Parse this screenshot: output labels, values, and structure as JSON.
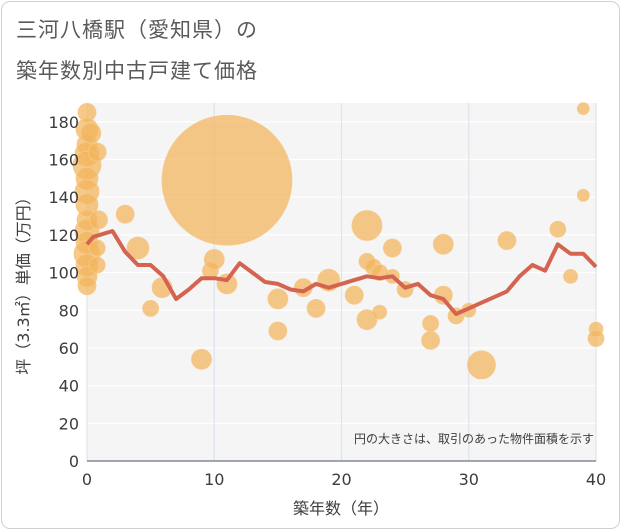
{
  "title_line1": "三河八橋駅（愛知県）の",
  "title_line2": "築年数別中古戸建て価格",
  "chart_data": {
    "type": "scatter",
    "title": "三河八橋駅（愛知県）の築年数別中古戸建て価格",
    "xlabel": "築年数（年）",
    "ylabel": "坪（3.3㎡）単価（万円）",
    "xlim": [
      0,
      40
    ],
    "ylim": [
      0,
      190
    ],
    "xticks": [
      0,
      10,
      20,
      30,
      40
    ],
    "yticks": [
      0,
      20,
      40,
      60,
      80,
      100,
      120,
      140,
      160,
      180
    ],
    "grid": true,
    "note": "円の大きさは、取引のあった物件面積を示す",
    "colors": {
      "bubble": "#f2b45c",
      "line": "#d4644f"
    },
    "bubbles": [
      {
        "x": 0,
        "y": 185,
        "size": 9
      },
      {
        "x": 0,
        "y": 176,
        "size": 11
      },
      {
        "x": 0,
        "y": 168,
        "size": 10
      },
      {
        "x": 0,
        "y": 163,
        "size": 12
      },
      {
        "x": 0,
        "y": 157,
        "size": 14
      },
      {
        "x": 0,
        "y": 150,
        "size": 11
      },
      {
        "x": 0,
        "y": 143,
        "size": 12
      },
      {
        "x": 0,
        "y": 136,
        "size": 11
      },
      {
        "x": 0,
        "y": 128,
        "size": 10
      },
      {
        "x": 0,
        "y": 122,
        "size": 12
      },
      {
        "x": 0,
        "y": 116,
        "size": 11
      },
      {
        "x": 0,
        "y": 110,
        "size": 13
      },
      {
        "x": 0,
        "y": 104,
        "size": 11
      },
      {
        "x": 0,
        "y": 98,
        "size": 10
      },
      {
        "x": 0,
        "y": 93,
        "size": 9
      },
      {
        "x": 0.3,
        "y": 174,
        "size": 10
      },
      {
        "x": 0.8,
        "y": 164,
        "size": 9
      },
      {
        "x": 0.9,
        "y": 128,
        "size": 9
      },
      {
        "x": 0.8,
        "y": 113,
        "size": 8
      },
      {
        "x": 0.8,
        "y": 104,
        "size": 8
      },
      {
        "x": 3,
        "y": 131,
        "size": 9
      },
      {
        "x": 4,
        "y": 113,
        "size": 11
      },
      {
        "x": 5,
        "y": 81,
        "size": 8
      },
      {
        "x": 5.9,
        "y": 92,
        "size": 10
      },
      {
        "x": 9,
        "y": 54,
        "size": 10
      },
      {
        "x": 9.7,
        "y": 101,
        "size": 8
      },
      {
        "x": 10,
        "y": 107,
        "size": 10
      },
      {
        "x": 11,
        "y": 149,
        "size": 65
      },
      {
        "x": 11,
        "y": 94,
        "size": 10
      },
      {
        "x": 15,
        "y": 86,
        "size": 10
      },
      {
        "x": 15,
        "y": 69,
        "size": 9
      },
      {
        "x": 17,
        "y": 92,
        "size": 9
      },
      {
        "x": 18,
        "y": 81,
        "size": 9
      },
      {
        "x": 19,
        "y": 96,
        "size": 11
      },
      {
        "x": 21,
        "y": 88,
        "size": 9
      },
      {
        "x": 22,
        "y": 125,
        "size": 15
      },
      {
        "x": 22,
        "y": 106,
        "size": 8
      },
      {
        "x": 22,
        "y": 75,
        "size": 10
      },
      {
        "x": 22.5,
        "y": 103,
        "size": 8
      },
      {
        "x": 23,
        "y": 100,
        "size": 8
      },
      {
        "x": 23,
        "y": 79,
        "size": 7
      },
      {
        "x": 24,
        "y": 113,
        "size": 9
      },
      {
        "x": 24,
        "y": 98,
        "size": 7
      },
      {
        "x": 25,
        "y": 91,
        "size": 8
      },
      {
        "x": 27,
        "y": 73,
        "size": 8
      },
      {
        "x": 27,
        "y": 64,
        "size": 9
      },
      {
        "x": 28,
        "y": 115,
        "size": 10
      },
      {
        "x": 28,
        "y": 88,
        "size": 9
      },
      {
        "x": 29,
        "y": 77,
        "size": 8
      },
      {
        "x": 30,
        "y": 80,
        "size": 7
      },
      {
        "x": 31,
        "y": 51,
        "size": 14
      },
      {
        "x": 33,
        "y": 117,
        "size": 9
      },
      {
        "x": 37,
        "y": 123,
        "size": 8
      },
      {
        "x": 38,
        "y": 98,
        "size": 7
      },
      {
        "x": 39,
        "y": 187,
        "size": 6
      },
      {
        "x": 39,
        "y": 141,
        "size": 6
      },
      {
        "x": 40,
        "y": 70,
        "size": 7
      },
      {
        "x": 40,
        "y": 65,
        "size": 8
      }
    ],
    "trend_line": {
      "x": [
        0,
        0.5,
        1,
        2,
        3,
        4,
        5,
        6,
        7,
        8,
        9,
        10,
        11,
        12,
        13,
        14,
        15,
        16,
        17,
        18,
        19,
        20,
        21,
        22,
        23,
        24,
        25,
        26,
        27,
        28,
        29,
        30,
        31,
        32,
        33,
        34,
        35,
        36,
        37,
        38,
        39,
        40
      ],
      "y": [
        115,
        119,
        120,
        122,
        111,
        104,
        104,
        98,
        86,
        91,
        97,
        97,
        96,
        105,
        100,
        95,
        94,
        91,
        90,
        94,
        92,
        94,
        96,
        98,
        97,
        98,
        92,
        94,
        88,
        86,
        78,
        81,
        84,
        87,
        90,
        98,
        104,
        101,
        115,
        110,
        110,
        103
      ]
    }
  }
}
